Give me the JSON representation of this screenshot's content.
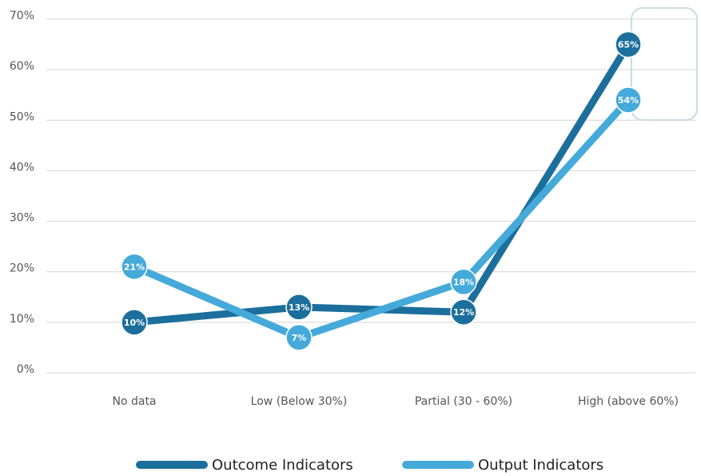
{
  "chart_data": {
    "type": "line",
    "categories": [
      "No data",
      "Low (Below 30%)",
      "Partial (30 - 60%)",
      "High (above 60%)"
    ],
    "series": [
      {
        "name": "Outcome Indicators",
        "color": "#1c6f9c",
        "values": [
          10,
          13,
          12,
          65
        ],
        "value_labels": [
          "10%",
          "13%",
          "12%",
          "65%"
        ]
      },
      {
        "name": "Output Indicators",
        "color": "#45a9da",
        "values": [
          21,
          7,
          18,
          54
        ],
        "value_labels": [
          "21%",
          "7%",
          "18%",
          "54%"
        ]
      }
    ],
    "ylim": [
      0,
      70
    ],
    "yticks": [
      {
        "value": 0,
        "label": "0%"
      },
      {
        "value": 10,
        "label": "10%"
      },
      {
        "value": 20,
        "label": "20%"
      },
      {
        "value": 30,
        "label": "30%"
      },
      {
        "value": 40,
        "label": "40%"
      },
      {
        "value": 50,
        "label": "50%"
      },
      {
        "value": 60,
        "label": "60%"
      },
      {
        "value": 70,
        "label": "70%"
      }
    ],
    "grid": true,
    "legend": "bottom"
  }
}
